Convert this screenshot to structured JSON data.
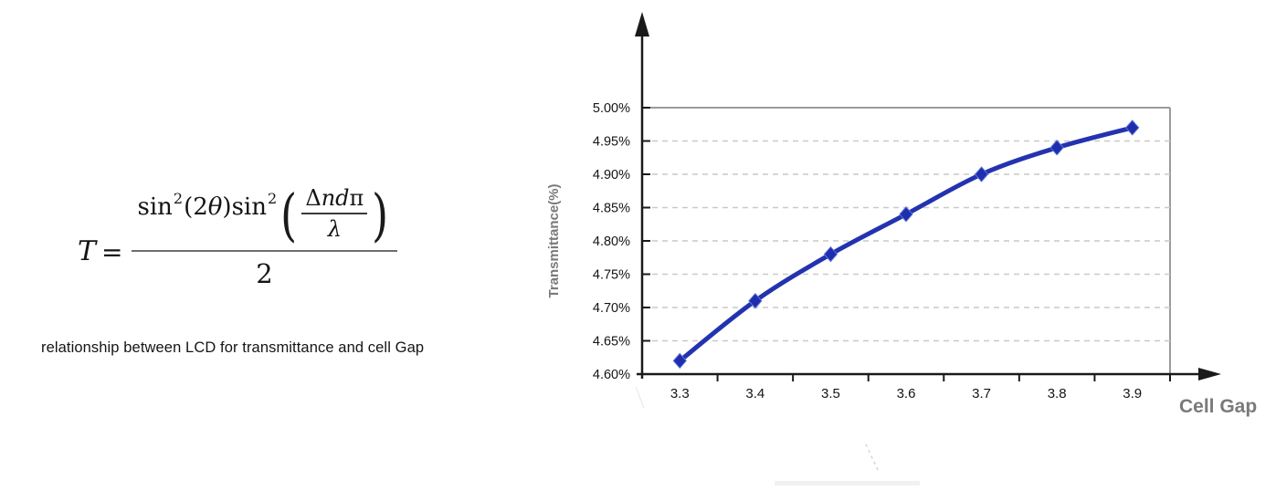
{
  "left_panel": {
    "formula": {
      "lhs": "T",
      "eq": "=",
      "sin1": "sin",
      "sup1": "2",
      "arg1_open": "(2",
      "arg1_theta": "θ",
      "arg1_close": ")",
      "sin2": "sin",
      "sup2": "2",
      "paren_open": "(",
      "inner_delta": "Δ",
      "inner_nd": "nd",
      "inner_pi": "π",
      "inner_lambda": "λ",
      "paren_close": ")",
      "denominator": "2"
    },
    "caption": "relationship between LCD for transmittance and cell Gap"
  },
  "chart_data": {
    "type": "line",
    "title": "",
    "x": [
      3.3,
      3.4,
      3.5,
      3.6,
      3.7,
      3.8,
      3.9
    ],
    "x_labels": [
      "3.3",
      "3.4",
      "3.5",
      "3.6",
      "3.7",
      "3.8",
      "3.9"
    ],
    "series": [
      {
        "name": "Transmittance",
        "values": [
          4.62,
          4.71,
          4.78,
          4.84,
          4.9,
          4.94,
          4.97
        ]
      }
    ],
    "xlabel": "Cell Gap",
    "ylabel": "Transmittance(%)",
    "ylim": [
      4.6,
      5.0
    ],
    "ytick_step": 0.05,
    "ytick_labels": [
      "4.60%",
      "4.65%",
      "4.70%",
      "4.75%",
      "4.80%",
      "4.85%",
      "4.90%",
      "4.95%",
      "5.00%"
    ],
    "grid": "horizontal-dashed",
    "legend": "none",
    "marker": "diamond",
    "colors": {
      "line": "#2333b0",
      "marker": "#1f2eae",
      "axis": "#1a1a1a",
      "plot_border": "#9b9b9b",
      "grid": "#c9c9c9",
      "tick_text": "#141414",
      "axis_title": "#7a7a7a",
      "artifact": "#d5d5da",
      "smudge": "#f1f1f1"
    }
  }
}
